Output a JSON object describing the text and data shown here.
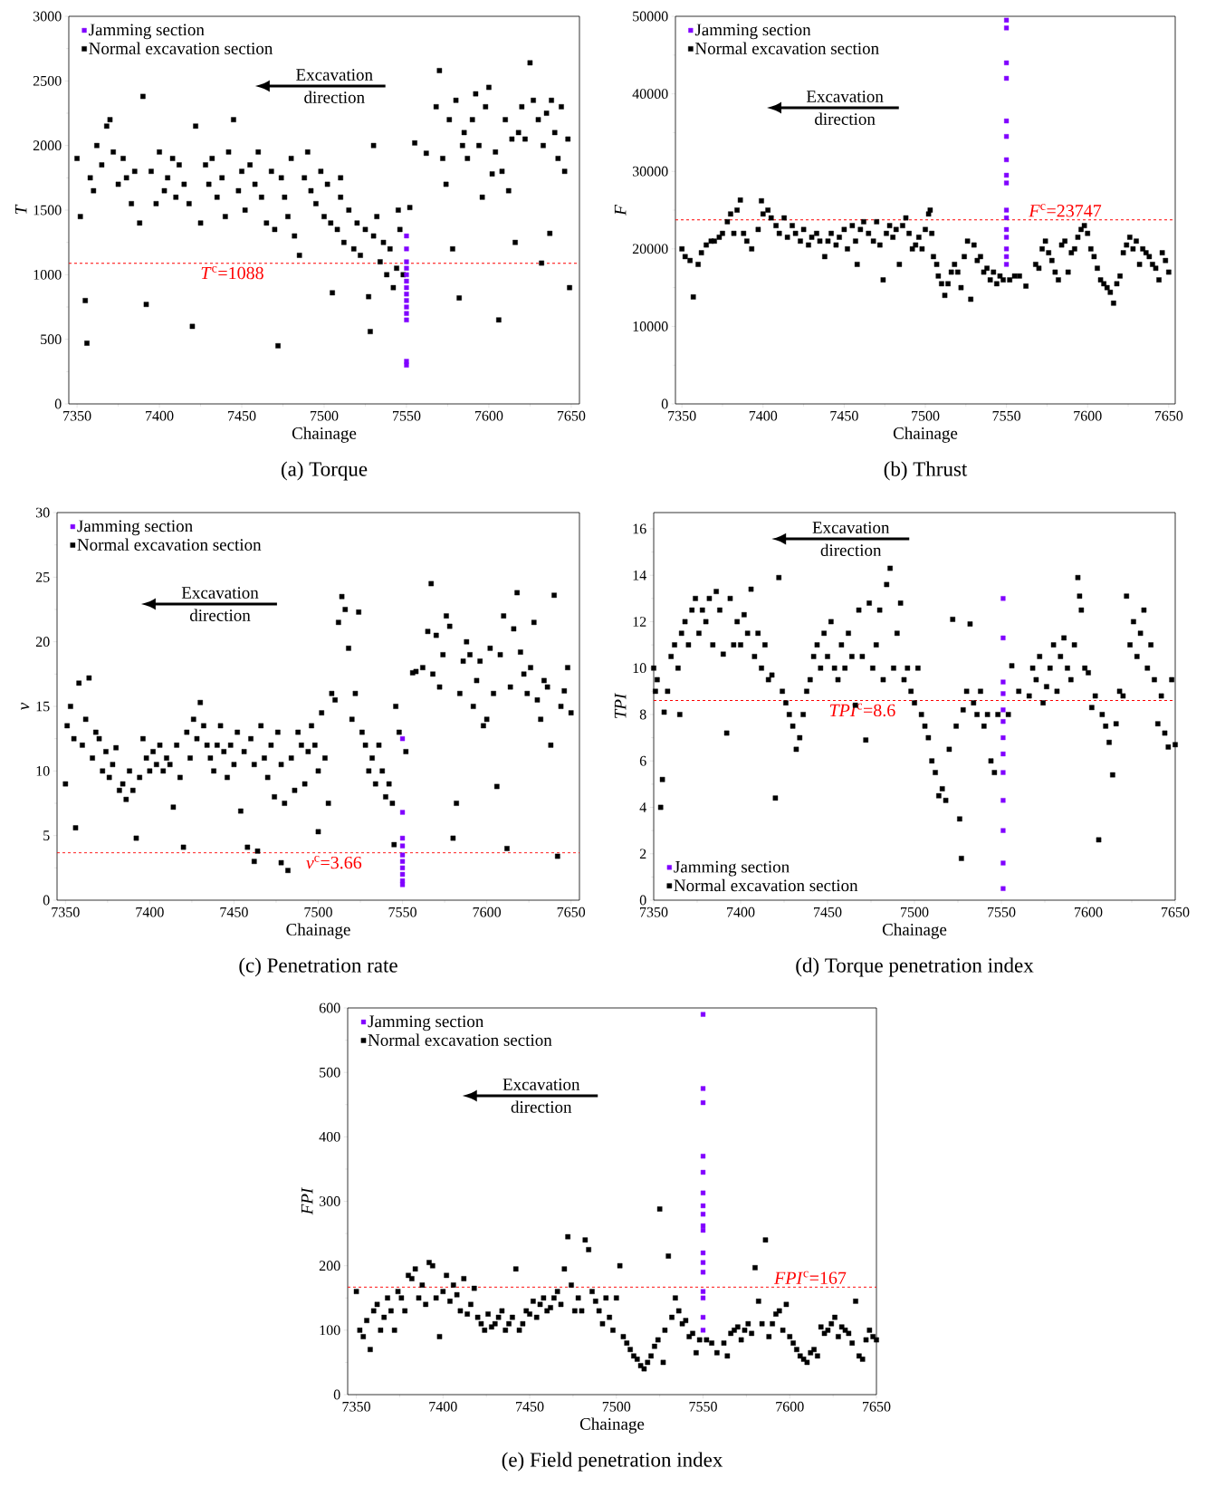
{
  "chart_data": [
    {
      "type": "scatter",
      "title": "(a) Torque",
      "xlabel": "Chainage",
      "ylabel": "T",
      "xlim": [
        7345,
        7655
      ],
      "ylim": [
        0,
        3000
      ],
      "xticks": [
        7350,
        7400,
        7450,
        7500,
        7550,
        7600,
        7650
      ],
      "yticks": [
        0,
        500,
        1000,
        1500,
        2000,
        2500,
        3000
      ],
      "marker": "square",
      "legend": "top left",
      "annotations": [
        "Excavation direction"
      ],
      "ref_lines": [
        {
          "axis": "y",
          "value": 1088,
          "label": "*T*$^{c}$=1088",
          "color": "#ff0000",
          "line_style": "dashed"
        }
      ],
      "series": [
        {
          "name": "Jamming section",
          "color": "#8000ff",
          "x": [
            7550,
            7550,
            7550,
            7550,
            7550,
            7550,
            7550,
            7550,
            7550,
            7550,
            7550,
            7550,
            7550,
            7550
          ],
          "values": [
            1300,
            1200,
            1100,
            1050,
            1000,
            950,
            900,
            850,
            800,
            750,
            700,
            650,
            330,
            300
          ]
        },
        {
          "name": "Normal excavation section",
          "color": "#000000",
          "x": [
            7350,
            7352,
            7355,
            7356,
            7358,
            7360,
            7362,
            7365,
            7368,
            7370,
            7372,
            7375,
            7378,
            7380,
            7383,
            7385,
            7388,
            7390,
            7392,
            7395,
            7398,
            7400,
            7403,
            7405,
            7408,
            7410,
            7412,
            7415,
            7418,
            7420,
            7422,
            7425,
            7428,
            7430,
            7432,
            7435,
            7438,
            7440,
            7442,
            7445,
            7448,
            7450,
            7452,
            7455,
            7458,
            7460,
            7462,
            7465,
            7468,
            7470,
            7472,
            7474,
            7476,
            7478,
            7480,
            7482,
            7485,
            7488,
            7490,
            7492,
            7495,
            7498,
            7500,
            7502,
            7504,
            7505,
            7508,
            7510,
            7512,
            7515,
            7518,
            7520,
            7522,
            7525,
            7527,
            7528,
            7530,
            7532,
            7534,
            7536,
            7538,
            7540,
            7542,
            7544,
            7546,
            7548,
            7545,
            7530,
            7510,
            7555,
            7552,
            7562,
            7568,
            7570,
            7572,
            7574,
            7576,
            7578,
            7580,
            7582,
            7584,
            7585,
            7587,
            7590,
            7592,
            7594,
            7596,
            7598,
            7600,
            7602,
            7604,
            7606,
            7608,
            7610,
            7612,
            7614,
            7616,
            7618,
            7620,
            7622,
            7625,
            7627,
            7630,
            7632,
            7633,
            7635,
            7637,
            7638,
            7640,
            7642,
            7644,
            7646,
            7648,
            7649
          ],
          "values": [
            1900,
            1450,
            800,
            470,
            1750,
            1650,
            2000,
            1850,
            2150,
            2200,
            1950,
            1700,
            1900,
            1750,
            1550,
            1800,
            1400,
            2380,
            770,
            1800,
            1550,
            1950,
            1650,
            1750,
            1900,
            1600,
            1850,
            1700,
            1550,
            600,
            2150,
            1400,
            1850,
            1700,
            1900,
            1600,
            1750,
            1450,
            1950,
            2200,
            1650,
            1800,
            1500,
            1850,
            1700,
            1950,
            1600,
            1400,
            1800,
            1350,
            450,
            1750,
            1600,
            1450,
            1900,
            1300,
            1150,
            1750,
            1950,
            1650,
            1550,
            1800,
            1450,
            1700,
            1400,
            860,
            1350,
            1600,
            1250,
            1500,
            1200,
            1400,
            1150,
            1350,
            830,
            560,
            1300,
            1450,
            1100,
            1250,
            1000,
            1200,
            900,
            1050,
            1350,
            1000,
            1500,
            2000,
            1750,
            2020,
            1520,
            1940,
            2300,
            2580,
            1900,
            1700,
            2200,
            1200,
            2350,
            820,
            2000,
            2100,
            1900,
            2200,
            2400,
            2000,
            1600,
            2300,
            2450,
            1780,
            1950,
            650,
            1800,
            2200,
            1650,
            2050,
            1250,
            2100,
            2300,
            2050,
            2640,
            2350,
            2200,
            1090,
            2000,
            2250,
            1320,
            2350,
            2100,
            1900,
            2300,
            1800,
            2050,
            900
          ]
        }
      ]
    },
    {
      "type": "scatter",
      "title": "(b) Thrust",
      "xlabel": "Chainage",
      "ylabel": "F",
      "xlim": [
        7346,
        7654
      ],
      "ylim": [
        0,
        50000
      ],
      "xticks": [
        7350,
        7400,
        7450,
        7500,
        7550,
        7600,
        7650
      ],
      "yticks": [
        0,
        10000,
        20000,
        30000,
        40000,
        50000
      ],
      "marker": "square",
      "legend": "top left",
      "annotations": [
        "Excavation direction"
      ],
      "ref_lines": [
        {
          "axis": "y",
          "value": 23747,
          "label": "*F*$^{c}$=23747",
          "color": "#ff0000",
          "line_style": "dashed"
        }
      ],
      "series": [
        {
          "name": "Jamming section",
          "color": "#8000ff",
          "x": [
            7550,
            7550,
            7550,
            7550,
            7550,
            7550,
            7550,
            7550,
            7550,
            7550,
            7550,
            7550,
            7550,
            7550,
            7550,
            7550
          ],
          "values": [
            49500,
            48500,
            44000,
            42000,
            36500,
            34500,
            31500,
            29500,
            28500,
            25000,
            24000,
            22500,
            21500,
            20000,
            19000,
            18000
          ]
        },
        {
          "name": "Normal excavation section",
          "color": "#000000",
          "x": [
            7350,
            7352,
            7355,
            7357,
            7360,
            7362,
            7365,
            7368,
            7370,
            7373,
            7375,
            7378,
            7380,
            7382,
            7384,
            7386,
            7388,
            7390,
            7393,
            7397,
            7399,
            7400,
            7403,
            7405,
            7408,
            7410,
            7413,
            7415,
            7418,
            7420,
            7423,
            7425,
            7428,
            7430,
            7433,
            7435,
            7438,
            7440,
            7442,
            7445,
            7447,
            7450,
            7452,
            7455,
            7457,
            7458,
            7460,
            7462,
            7465,
            7468,
            7470,
            7472,
            7474,
            7476,
            7478,
            7480,
            7482,
            7484,
            7486,
            7488,
            7490,
            7492,
            7494,
            7496,
            7498,
            7500,
            7502,
            7503,
            7504,
            7505,
            7507,
            7508,
            7510,
            7512,
            7514,
            7516,
            7518,
            7520,
            7522,
            7524,
            7526,
            7528,
            7530,
            7532,
            7534,
            7536,
            7538,
            7540,
            7542,
            7544,
            7546,
            7548,
            7552,
            7555,
            7558,
            7562,
            7568,
            7570,
            7572,
            7574,
            7576,
            7578,
            7580,
            7582,
            7584,
            7586,
            7588,
            7590,
            7592,
            7594,
            7596,
            7598,
            7600,
            7602,
            7604,
            7606,
            7608,
            7610,
            7612,
            7614,
            7616,
            7618,
            7620,
            7622,
            7624,
            7626,
            7628,
            7630,
            7632,
            7634,
            7636,
            7638,
            7640,
            7642,
            7644,
            7646,
            7648,
            7650
          ],
          "values": [
            20000,
            19000,
            18500,
            13800,
            18000,
            19500,
            20500,
            21000,
            21000,
            21500,
            22000,
            23500,
            24500,
            22000,
            25000,
            26300,
            22000,
            21000,
            20000,
            22500,
            26200,
            24500,
            25000,
            24000,
            23000,
            22000,
            24000,
            21500,
            23000,
            22000,
            21000,
            22500,
            20500,
            21500,
            22000,
            21000,
            19000,
            21000,
            22000,
            20500,
            21500,
            22500,
            20000,
            23000,
            21000,
            18000,
            22500,
            23500,
            22000,
            21000,
            23500,
            20500,
            16000,
            22000,
            23000,
            21500,
            22500,
            18000,
            23000,
            24000,
            22000,
            20000,
            20500,
            21500,
            20000,
            22500,
            24500,
            25000,
            22000,
            19000,
            18000,
            16500,
            15500,
            14000,
            15500,
            17000,
            18000,
            17000,
            15000,
            19000,
            21000,
            13500,
            20500,
            18500,
            19000,
            17000,
            17500,
            16000,
            17000,
            15500,
            16500,
            16000,
            16000,
            16500,
            16500,
            15200,
            18000,
            17500,
            20000,
            21000,
            19500,
            18500,
            17000,
            16000,
            20500,
            21000,
            17000,
            19500,
            20000,
            21500,
            22500,
            23000,
            22000,
            20000,
            19000,
            17500,
            16000,
            15500,
            15000,
            14400,
            13000,
            15500,
            16500,
            19500,
            20500,
            21500,
            20000,
            21000,
            18000,
            20000,
            19500,
            19000,
            18000,
            17500,
            16000,
            19500,
            18500,
            17000
          ]
        }
      ]
    },
    {
      "type": "scatter",
      "title": "(c) Penetration rate",
      "xlabel": "Chainage",
      "ylabel": "v",
      "xlim": [
        7345,
        7655
      ],
      "ylim": [
        0,
        30
      ],
      "xticks": [
        7350,
        7400,
        7450,
        7500,
        7550,
        7600,
        7650
      ],
      "yticks": [
        0,
        5,
        10,
        15,
        20,
        25,
        30
      ],
      "marker": "square",
      "legend": "top left",
      "annotations": [
        "Excavation direction"
      ],
      "ref_lines": [
        {
          "axis": "y",
          "value": 3.66,
          "label": "*v*$^{c}$=3.66",
          "color": "#ff0000",
          "line_style": "dashed"
        }
      ],
      "series": [
        {
          "name": "Jamming section",
          "color": "#8000ff",
          "x": [
            7550,
            7550,
            7550,
            7550,
            7550,
            7550,
            7550,
            7550,
            7550,
            7550
          ],
          "values": [
            12.5,
            6.8,
            4.8,
            4.2,
            3.5,
            3.0,
            2.5,
            2.0,
            1.5,
            1.2
          ]
        },
        {
          "name": "Normal excavation section",
          "color": "#000000",
          "x": [
            7350,
            7351,
            7353,
            7355,
            7356,
            7358,
            7360,
            7362,
            7364,
            7366,
            7368,
            7370,
            7372,
            7374,
            7376,
            7378,
            7380,
            7382,
            7384,
            7386,
            7388,
            7390,
            7392,
            7394,
            7396,
            7398,
            7400,
            7402,
            7404,
            7406,
            7408,
            7410,
            7412,
            7414,
            7416,
            7418,
            7420,
            7422,
            7424,
            7426,
            7428,
            7430,
            7432,
            7434,
            7436,
            7438,
            7440,
            7442,
            7444,
            7446,
            7448,
            7450,
            7452,
            7454,
            7456,
            7458,
            7460,
            7462,
            7464,
            7466,
            7468,
            7470,
            7472,
            7474,
            7476,
            7478,
            7480,
            7482,
            7484,
            7486,
            7488,
            7490,
            7492,
            7494,
            7496,
            7498,
            7500,
            7502,
            7504,
            7506,
            7508,
            7510,
            7512,
            7514,
            7516,
            7518,
            7520,
            7522,
            7524,
            7526,
            7528,
            7530,
            7532,
            7534,
            7536,
            7538,
            7540,
            7542,
            7544,
            7546,
            7548,
            7500,
            7478,
            7545,
            7462,
            7552,
            7556,
            7558,
            7562,
            7565,
            7567,
            7568,
            7570,
            7572,
            7574,
            7576,
            7578,
            7580,
            7582,
            7584,
            7586,
            7588,
            7590,
            7592,
            7594,
            7596,
            7598,
            7600,
            7602,
            7604,
            7606,
            7608,
            7610,
            7612,
            7614,
            7616,
            7618,
            7620,
            7622,
            7624,
            7626,
            7628,
            7630,
            7632,
            7634,
            7636,
            7638,
            7640,
            7642,
            7644,
            7646,
            7648,
            7650
          ],
          "values": [
            9,
            13.5,
            15,
            12.5,
            5.6,
            16.8,
            12,
            14,
            17.2,
            11,
            13,
            12.5,
            10,
            11.5,
            9.5,
            10.5,
            11.8,
            8.5,
            9,
            7.8,
            10,
            8.5,
            4.8,
            9.5,
            12.5,
            11,
            10,
            11.5,
            10.5,
            12,
            10,
            11,
            10.5,
            7.2,
            12,
            9.5,
            4.1,
            13,
            11,
            14,
            12.5,
            15.3,
            13.5,
            12,
            11,
            10,
            12,
            13.5,
            11.5,
            9.5,
            12,
            10.5,
            13,
            6.9,
            11.5,
            4.1,
            12.5,
            10.5,
            3.8,
            13.5,
            11,
            9.5,
            12,
            8,
            13,
            10.5,
            7.5,
            2.3,
            11,
            8.5,
            13,
            12,
            9,
            11.5,
            13.5,
            12,
            10,
            14.5,
            11,
            7.5,
            16,
            15.5,
            21.5,
            23.5,
            22.5,
            19.5,
            14,
            16,
            22.3,
            13,
            12,
            10,
            11,
            9,
            12,
            10,
            8,
            9,
            7.5,
            15,
            13,
            5.3,
            2.9,
            4.3,
            3,
            11.5,
            17.6,
            17.7,
            18,
            20.8,
            24.5,
            17.5,
            20.5,
            16.5,
            19,
            22,
            21.2,
            4.8,
            7.5,
            16,
            18.5,
            20,
            19,
            15,
            17,
            18.5,
            13.5,
            14,
            19.5,
            16,
            8.8,
            19,
            22,
            4,
            16.5,
            21,
            23.8,
            19.2,
            17.5,
            16,
            18,
            21.5,
            15.5,
            14,
            17,
            16.5,
            12,
            23.6,
            3.4,
            15,
            16.2,
            18,
            14.5
          ]
        }
      ]
    },
    {
      "type": "scatter",
      "title": "(d) Torque penetration index",
      "xlabel": "Chainage",
      "ylabel": "TPI",
      "xlim": [
        7350,
        7650
      ],
      "ylim": [
        0,
        16.7
      ],
      "xticks": [
        7350,
        7400,
        7450,
        7500,
        7550,
        7600,
        7650
      ],
      "yticks": [
        0,
        2,
        4,
        6,
        8,
        10,
        12,
        14,
        16
      ],
      "marker": "square",
      "legend": "bottom left",
      "annotations": [
        "Excavation direction"
      ],
      "ref_lines": [
        {
          "axis": "y",
          "value": 8.6,
          "label": "*TPI*$^{c}$=8.6",
          "color": "#ff0000",
          "line_style": "dashed"
        }
      ],
      "series": [
        {
          "name": "Jamming section",
          "color": "#8000ff",
          "x": [
            7551,
            7551,
            7551,
            7551,
            7551,
            7551,
            7551,
            7551,
            7551,
            7551,
            7551,
            7551,
            7551
          ],
          "values": [
            13,
            11.3,
            9.4,
            8.9,
            8.2,
            7.7,
            7.0,
            6.3,
            5.5,
            4.3,
            3.0,
            1.6,
            0.5
          ]
        },
        {
          "name": "Normal excavation section",
          "color": "#000000",
          "x": [
            7350,
            7351,
            7352,
            7354,
            7355,
            7356,
            7358,
            7360,
            7362,
            7364,
            7365,
            7366,
            7368,
            7370,
            7372,
            7374,
            7376,
            7378,
            7380,
            7382,
            7384,
            7386,
            7388,
            7390,
            7392,
            7394,
            7396,
            7398,
            7400,
            7402,
            7404,
            7406,
            7408,
            7410,
            7412,
            7414,
            7416,
            7418,
            7420,
            7422,
            7424,
            7426,
            7428,
            7430,
            7432,
            7434,
            7436,
            7438,
            7440,
            7442,
            7444,
            7446,
            7448,
            7450,
            7452,
            7454,
            7456,
            7458,
            7460,
            7462,
            7464,
            7466,
            7468,
            7470,
            7472,
            7474,
            7476,
            7478,
            7480,
            7482,
            7484,
            7486,
            7488,
            7490,
            7492,
            7494,
            7496,
            7498,
            7500,
            7502,
            7504,
            7506,
            7508,
            7510,
            7512,
            7514,
            7516,
            7518,
            7520,
            7522,
            7524,
            7526,
            7527,
            7528,
            7530,
            7532,
            7534,
            7536,
            7538,
            7540,
            7542,
            7544,
            7546,
            7548,
            7554,
            7556,
            7560,
            7566,
            7568,
            7570,
            7572,
            7574,
            7576,
            7578,
            7580,
            7582,
            7584,
            7586,
            7588,
            7590,
            7592,
            7594,
            7595,
            7596,
            7598,
            7600,
            7602,
            7604,
            7606,
            7608,
            7610,
            7612,
            7614,
            7616,
            7618,
            7620,
            7622,
            7624,
            7626,
            7628,
            7630,
            7632,
            7634,
            7636,
            7638,
            7640,
            7642,
            7644,
            7646,
            7648,
            7650
          ],
          "values": [
            10,
            9,
            9.5,
            4,
            5.2,
            8.1,
            9,
            10.5,
            11,
            10,
            8,
            11.5,
            12,
            11,
            12.5,
            13,
            11.5,
            12.5,
            12,
            13,
            11,
            13.3,
            12.5,
            10.6,
            7.2,
            13,
            11,
            12,
            11,
            12.3,
            11.5,
            13.4,
            10.5,
            11.5,
            10,
            11,
            9.5,
            9.7,
            4.4,
            13.9,
            9,
            8.5,
            8,
            7.5,
            6.5,
            7,
            8,
            9,
            9.5,
            10.5,
            11,
            10,
            11.5,
            10.5,
            12,
            10,
            9.5,
            11,
            10,
            11.5,
            10.5,
            8.4,
            12.5,
            10.5,
            6.9,
            12.8,
            10,
            11,
            12.5,
            9.5,
            13.6,
            14.3,
            10,
            11.5,
            12.8,
            9.5,
            10,
            9,
            8.5,
            10,
            8,
            7.5,
            7,
            6,
            5.5,
            4.5,
            4.8,
            4.3,
            6.5,
            12.1,
            7.5,
            3.5,
            1.8,
            8.2,
            9,
            11.9,
            8.5,
            8,
            9,
            7.5,
            8,
            6,
            5.5,
            8,
            8,
            10.1,
            9,
            8.8,
            10,
            9.5,
            10.5,
            8.5,
            9.2,
            10,
            11,
            9,
            10.5,
            11.3,
            10,
            9.5,
            11,
            13.9,
            13.1,
            12.5,
            10,
            9.8,
            8.3,
            8.8,
            2.6,
            8,
            7.5,
            6.8,
            5.4,
            7.6,
            9,
            8.8,
            13.1,
            11,
            12,
            10.5,
            11.5,
            12.5,
            10,
            11,
            9.5,
            7.6,
            8.8,
            7.2,
            6.6,
            9.5,
            6.7
          ]
        }
      ]
    },
    {
      "type": "scatter",
      "title": "(e) Field penetration index",
      "xlabel": "Chainage",
      "ylabel": "FPI",
      "xlim": [
        7345,
        7650
      ],
      "ylim": [
        0,
        600
      ],
      "xticks": [
        7350,
        7400,
        7450,
        7500,
        7550,
        7600,
        7650
      ],
      "yticks": [
        0,
        100,
        200,
        300,
        400,
        500,
        600
      ],
      "marker": "square",
      "legend": "top left",
      "annotations": [
        "Excavation direction"
      ],
      "ref_lines": [
        {
          "axis": "y",
          "value": 167,
          "label": "*FPI*$^{c}$=167",
          "color": "#ff0000",
          "line_style": "dashed"
        }
      ],
      "series": [
        {
          "name": "Jamming section",
          "color": "#8000ff",
          "x": [
            7550,
            7550,
            7550,
            7550,
            7550,
            7550,
            7550,
            7550,
            7550,
            7550,
            7550,
            7550,
            7550,
            7550,
            7550,
            7550,
            7550
          ],
          "values": [
            590,
            475,
            453,
            370,
            345,
            313,
            293,
            280,
            262,
            255,
            220,
            205,
            190,
            160,
            150,
            120,
            100
          ]
        },
        {
          "name": "Normal excavation section",
          "color": "#000000",
          "x": [
            7350,
            7352,
            7354,
            7356,
            7358,
            7360,
            7362,
            7364,
            7366,
            7368,
            7370,
            7372,
            7374,
            7376,
            7378,
            7380,
            7382,
            7384,
            7386,
            7388,
            7390,
            7392,
            7394,
            7396,
            7398,
            7400,
            7402,
            7404,
            7406,
            7408,
            7410,
            7412,
            7414,
            7416,
            7418,
            7420,
            7422,
            7424,
            7426,
            7428,
            7430,
            7432,
            7434,
            7436,
            7438,
            7440,
            7442,
            7444,
            7446,
            7448,
            7450,
            7452,
            7454,
            7456,
            7458,
            7460,
            7462,
            7464,
            7466,
            7468,
            7470,
            7472,
            7474,
            7476,
            7478,
            7480,
            7482,
            7484,
            7486,
            7488,
            7490,
            7492,
            7494,
            7496,
            7498,
            7500,
            7502,
            7504,
            7506,
            7508,
            7510,
            7512,
            7514,
            7516,
            7518,
            7520,
            7522,
            7524,
            7525,
            7527,
            7528,
            7530,
            7532,
            7534,
            7536,
            7538,
            7540,
            7542,
            7544,
            7546,
            7548,
            7552,
            7555,
            7558,
            7562,
            7564,
            7566,
            7568,
            7570,
            7572,
            7574,
            7576,
            7578,
            7580,
            7582,
            7584,
            7586,
            7588,
            7590,
            7592,
            7594,
            7596,
            7598,
            7600,
            7602,
            7604,
            7606,
            7608,
            7610,
            7612,
            7614,
            7616,
            7618,
            7620,
            7622,
            7624,
            7626,
            7628,
            7630,
            7632,
            7634,
            7636,
            7638,
            7640,
            7642,
            7644,
            7646,
            7648,
            7650
          ],
          "values": [
            160,
            100,
            90,
            115,
            70,
            130,
            140,
            100,
            120,
            150,
            130,
            100,
            160,
            150,
            130,
            185,
            180,
            195,
            150,
            170,
            140,
            205,
            200,
            150,
            90,
            160,
            185,
            145,
            170,
            155,
            130,
            180,
            125,
            140,
            165,
            120,
            110,
            100,
            125,
            105,
            110,
            120,
            130,
            100,
            110,
            120,
            195,
            100,
            110,
            130,
            125,
            145,
            120,
            140,
            150,
            130,
            135,
            150,
            160,
            140,
            195,
            245,
            170,
            130,
            150,
            130,
            240,
            225,
            160,
            145,
            130,
            110,
            150,
            120,
            100,
            150,
            200,
            90,
            80,
            70,
            60,
            55,
            45,
            40,
            50,
            60,
            75,
            85,
            288,
            50,
            100,
            215,
            120,
            150,
            130,
            110,
            115,
            90,
            95,
            65,
            85,
            85,
            80,
            65,
            80,
            60,
            95,
            100,
            105,
            85,
            100,
            110,
            95,
            197,
            145,
            110,
            240,
            90,
            110,
            125,
            130,
            100,
            140,
            90,
            80,
            70,
            60,
            55,
            50,
            65,
            70,
            60,
            105,
            95,
            100,
            110,
            120,
            90,
            105,
            100,
            95,
            80,
            145,
            60,
            55,
            85,
            100,
            90,
            85
          ]
        }
      ]
    }
  ]
}
